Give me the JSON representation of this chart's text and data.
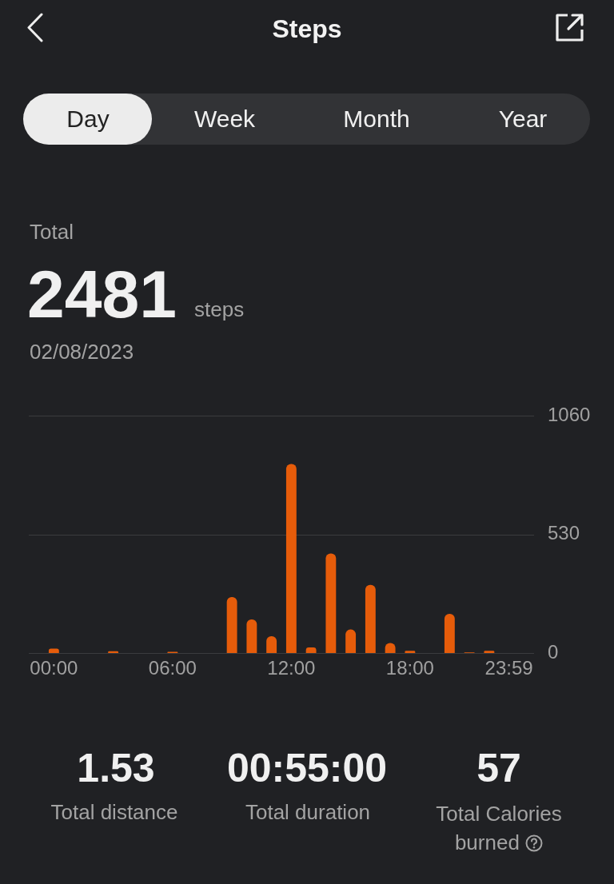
{
  "chart_data": {
    "type": "bar",
    "title": "Steps",
    "categories": [
      "00:00",
      null,
      null,
      null,
      null,
      null,
      "06:00",
      null,
      null,
      null,
      null,
      null,
      "12:00",
      null,
      null,
      null,
      null,
      null,
      "18:00",
      null,
      null,
      null,
      null,
      "23:59"
    ],
    "values": [
      20,
      0,
      0,
      8,
      0,
      0,
      5,
      0,
      0,
      250,
      150,
      75,
      845,
      25,
      445,
      105,
      305,
      45,
      10,
      0,
      175,
      3,
      10,
      0
    ],
    "color": "#e65c0a",
    "ylim": [
      0,
      1060
    ],
    "yticks": [
      0,
      530,
      1060
    ],
    "grid": "y",
    "annotations": [
      "Day",
      "Week",
      "Month",
      "Year",
      "Total",
      "2481",
      "steps",
      "02/08/2023",
      "1.53",
      "Total distance",
      "00:55:00",
      "Total duration",
      "57",
      "Total Calories burned"
    ]
  }
}
